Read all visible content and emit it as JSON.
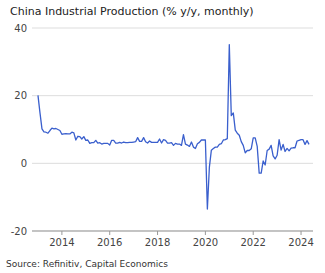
{
  "chart_data": {
    "type": "line",
    "title": "China Industrial Production (% y/y, monthly)",
    "annotations": [
      "Source: Refinitiv, Capital Economics"
    ],
    "color": "#3a5fcd",
    "grid": true,
    "xlim": [
      2012.75,
      2024.5
    ],
    "xticks": [
      2014,
      2016,
      2018,
      2020,
      2022,
      2024
    ],
    "ylim": [
      -20,
      40
    ],
    "yticks": [
      -20,
      0,
      20,
      40
    ],
    "x": [
      2013.0,
      2013.083,
      2013.167,
      2013.25,
      2013.333,
      2013.417,
      2013.5,
      2013.583,
      2013.667,
      2013.75,
      2013.833,
      2013.917,
      2014.0,
      2014.083,
      2014.167,
      2014.25,
      2014.333,
      2014.417,
      2014.5,
      2014.583,
      2014.667,
      2014.75,
      2014.833,
      2014.917,
      2015.0,
      2015.083,
      2015.167,
      2015.25,
      2015.333,
      2015.417,
      2015.5,
      2015.583,
      2015.667,
      2015.75,
      2015.833,
      2015.917,
      2016.0,
      2016.083,
      2016.167,
      2016.25,
      2016.333,
      2016.417,
      2016.5,
      2016.583,
      2016.667,
      2016.75,
      2016.833,
      2016.917,
      2017.0,
      2017.083,
      2017.167,
      2017.25,
      2017.333,
      2017.417,
      2017.5,
      2017.583,
      2017.667,
      2017.75,
      2017.833,
      2017.917,
      2018.0,
      2018.083,
      2018.167,
      2018.25,
      2018.333,
      2018.417,
      2018.5,
      2018.583,
      2018.667,
      2018.75,
      2018.833,
      2018.917,
      2019.0,
      2019.083,
      2019.167,
      2019.25,
      2019.333,
      2019.417,
      2019.5,
      2019.583,
      2019.667,
      2019.75,
      2019.833,
      2019.917,
      2020.0,
      2020.083,
      2020.167,
      2020.25,
      2020.333,
      2020.417,
      2020.5,
      2020.583,
      2020.667,
      2020.75,
      2020.833,
      2020.917,
      2021.0,
      2021.083,
      2021.167,
      2021.25,
      2021.333,
      2021.417,
      2021.5,
      2021.583,
      2021.667,
      2021.75,
      2021.833,
      2021.917,
      2022.0,
      2022.083,
      2022.167,
      2022.25,
      2022.333,
      2022.417,
      2022.5,
      2022.583,
      2022.667,
      2022.75,
      2022.833,
      2022.917,
      2023.0,
      2023.083,
      2023.167,
      2023.25,
      2023.333,
      2023.417,
      2023.5,
      2023.583,
      2023.667,
      2023.75,
      2023.833,
      2023.917,
      2024.0,
      2024.083,
      2024.167,
      2024.25,
      2024.333
    ],
    "values": [
      20.1,
      15.0,
      10.2,
      9.3,
      9.2,
      8.9,
      9.7,
      10.4,
      10.2,
      10.3,
      10.0,
      9.7,
      8.6,
      8.7,
      8.8,
      8.7,
      8.7,
      9.2,
      9.0,
      6.9,
      8.0,
      7.9,
      7.2,
      7.9,
      6.8,
      6.9,
      5.9,
      6.1,
      6.1,
      6.8,
      6.0,
      6.1,
      5.7,
      5.9,
      5.9,
      5.9,
      5.4,
      6.8,
      6.8,
      6.0,
      6.0,
      6.2,
      6.0,
      6.3,
      6.1,
      6.1,
      6.2,
      6.2,
      6.3,
      6.4,
      7.6,
      6.5,
      6.5,
      7.6,
      6.4,
      6.0,
      6.6,
      6.2,
      6.2,
      6.2,
      6.2,
      7.2,
      6.0,
      7.0,
      6.8,
      6.0,
      6.0,
      6.1,
      5.3,
      5.9,
      5.7,
      5.7,
      5.3,
      8.5,
      5.7,
      5.4,
      5.0,
      6.3,
      4.8,
      4.4,
      5.8,
      6.2,
      6.9,
      6.9,
      6.9,
      -13.5,
      -1.1,
      3.9,
      4.4,
      4.8,
      4.8,
      5.6,
      5.8,
      6.9,
      7.0,
      7.3,
      35.1,
      14.1,
      14.9,
      9.8,
      8.9,
      8.3,
      6.4,
      5.3,
      3.1,
      3.8,
      3.8,
      4.3,
      7.5,
      7.5,
      5.0,
      -2.9,
      -2.9,
      0.7,
      -0.5,
      3.8,
      4.2,
      5.3,
      2.2,
      1.3,
      2.4,
      7.0,
      3.9,
      5.6,
      3.5,
      4.4,
      3.7,
      4.5,
      4.6,
      4.6,
      6.6,
      6.8,
      7.0,
      7.0,
      5.6,
      6.7,
      5.6
    ]
  }
}
